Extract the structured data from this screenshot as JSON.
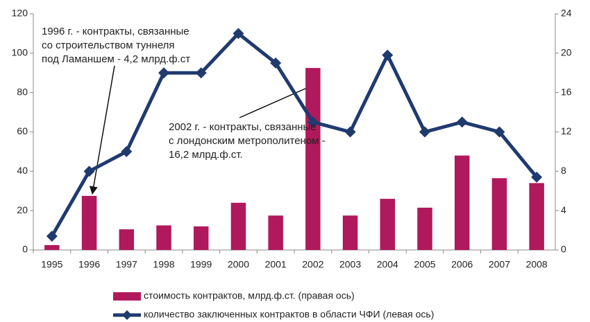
{
  "chart_data": {
    "type": "bar_line",
    "categories": [
      "1995",
      "1996",
      "1997",
      "1998",
      "1999",
      "2000",
      "2001",
      "2002",
      "2003",
      "2004",
      "2005",
      "2006",
      "2007",
      "2008"
    ],
    "series": [
      {
        "name": "стоимость контрактов, млрд.ф.ст. (правая ось)",
        "type": "bar",
        "axis": "y2",
        "color": "#b0195c",
        "values": [
          0.5,
          5.5,
          2.1,
          2.5,
          2.4,
          4.8,
          3.5,
          18.5,
          3.5,
          5.2,
          4.3,
          9.6,
          7.3,
          6.8
        ]
      },
      {
        "name": "количество заключенных контрактов в области ЧФИ (левая ось)",
        "type": "line",
        "axis": "y",
        "color": "#1f3a6e",
        "values": [
          7,
          40,
          50,
          90,
          90,
          110,
          95,
          65,
          60,
          99,
          60,
          65,
          60,
          37
        ]
      }
    ],
    "ylim": [
      0,
      120
    ],
    "yticks": [
      0,
      20,
      40,
      60,
      80,
      100,
      120
    ],
    "y2lim": [
      0,
      24
    ],
    "y2ticks": [
      0,
      4,
      8,
      12,
      16,
      20,
      24
    ],
    "annotations": [
      {
        "lines": [
          "1996 г. - контракты, связанные",
          "со строительством туннеля",
          "под Ламаншем - 4,2 млрд.ф.ст"
        ]
      },
      {
        "lines": [
          "2002 г. - контракты, связанные",
          "с лондонским метрополитеном -",
          "16,2 млрд.ф.ст."
        ]
      }
    ],
    "legend": "bottom"
  }
}
